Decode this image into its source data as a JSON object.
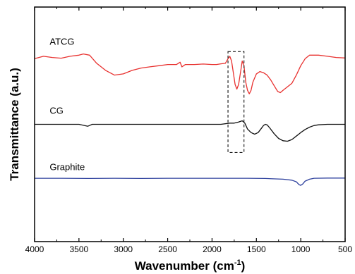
{
  "chart_data": {
    "type": "line",
    "xlabel": "Wavenumber (cm",
    "xlabel_sup": "-1",
    "xlabel_suffix": ")",
    "ylabel": "Transmittance (a.u.)",
    "xlim": [
      4000,
      500
    ],
    "x_reversed": true,
    "x_ticks": [
      4000,
      3500,
      3000,
      2500,
      2000,
      1500,
      1000,
      500
    ],
    "x_tick_labels": [
      "4000",
      "3500",
      "3000",
      "2500",
      "2000",
      "1500",
      "1000",
      "500"
    ],
    "ylim": [
      0,
      1
    ],
    "y_ticks_shown": false,
    "grid": false,
    "legend": "none",
    "highlight_box": {
      "x_from": 1820,
      "x_to": 1640,
      "y_from": 0.38,
      "y_to": 0.81,
      "style": "dashed"
    },
    "series": [
      {
        "name": "ATCG",
        "color": "#e8312f",
        "label_at": [
          3830,
          0.84
        ],
        "points": [
          [
            4000,
            0.78
          ],
          [
            3900,
            0.79
          ],
          [
            3800,
            0.785
          ],
          [
            3700,
            0.782
          ],
          [
            3600,
            0.79
          ],
          [
            3500,
            0.795
          ],
          [
            3450,
            0.8
          ],
          [
            3380,
            0.795
          ],
          [
            3300,
            0.76
          ],
          [
            3200,
            0.73
          ],
          [
            3100,
            0.71
          ],
          [
            3000,
            0.715
          ],
          [
            2900,
            0.73
          ],
          [
            2800,
            0.74
          ],
          [
            2700,
            0.745
          ],
          [
            2600,
            0.75
          ],
          [
            2500,
            0.755
          ],
          [
            2400,
            0.755
          ],
          [
            2360,
            0.765
          ],
          [
            2340,
            0.745
          ],
          [
            2300,
            0.755
          ],
          [
            2200,
            0.755
          ],
          [
            2100,
            0.757
          ],
          [
            2000,
            0.755
          ],
          [
            1950,
            0.755
          ],
          [
            1900,
            0.758
          ],
          [
            1850,
            0.76
          ],
          [
            1820,
            0.78
          ],
          [
            1800,
            0.79
          ],
          [
            1780,
            0.77
          ],
          [
            1760,
            0.72
          ],
          [
            1740,
            0.67
          ],
          [
            1720,
            0.65
          ],
          [
            1700,
            0.67
          ],
          [
            1680,
            0.72
          ],
          [
            1660,
            0.77
          ],
          [
            1640,
            0.75
          ],
          [
            1620,
            0.68
          ],
          [
            1600,
            0.645
          ],
          [
            1580,
            0.63
          ],
          [
            1560,
            0.645
          ],
          [
            1540,
            0.68
          ],
          [
            1500,
            0.715
          ],
          [
            1460,
            0.725
          ],
          [
            1420,
            0.72
          ],
          [
            1380,
            0.71
          ],
          [
            1340,
            0.69
          ],
          [
            1300,
            0.665
          ],
          [
            1260,
            0.64
          ],
          [
            1230,
            0.635
          ],
          [
            1200,
            0.645
          ],
          [
            1150,
            0.66
          ],
          [
            1100,
            0.675
          ],
          [
            1050,
            0.71
          ],
          [
            1000,
            0.75
          ],
          [
            950,
            0.78
          ],
          [
            900,
            0.795
          ],
          [
            800,
            0.795
          ],
          [
            700,
            0.79
          ],
          [
            600,
            0.785
          ],
          [
            500,
            0.783
          ]
        ]
      },
      {
        "name": "CG",
        "color": "#111111",
        "label_at": [
          3830,
          0.545
        ],
        "points": [
          [
            4000,
            0.5
          ],
          [
            3800,
            0.5
          ],
          [
            3600,
            0.5
          ],
          [
            3500,
            0.5
          ],
          [
            3400,
            0.492
          ],
          [
            3350,
            0.5
          ],
          [
            3200,
            0.5
          ],
          [
            3000,
            0.5
          ],
          [
            2800,
            0.5
          ],
          [
            2600,
            0.5
          ],
          [
            2400,
            0.5
          ],
          [
            2200,
            0.5
          ],
          [
            2000,
            0.5
          ],
          [
            1900,
            0.5
          ],
          [
            1800,
            0.505
          ],
          [
            1750,
            0.505
          ],
          [
            1700,
            0.51
          ],
          [
            1660,
            0.515
          ],
          [
            1630,
            0.505
          ],
          [
            1600,
            0.48
          ],
          [
            1560,
            0.465
          ],
          [
            1520,
            0.458
          ],
          [
            1480,
            0.465
          ],
          [
            1450,
            0.48
          ],
          [
            1420,
            0.495
          ],
          [
            1400,
            0.5
          ],
          [
            1380,
            0.498
          ],
          [
            1350,
            0.485
          ],
          [
            1300,
            0.46
          ],
          [
            1250,
            0.44
          ],
          [
            1200,
            0.43
          ],
          [
            1150,
            0.428
          ],
          [
            1100,
            0.435
          ],
          [
            1050,
            0.45
          ],
          [
            1000,
            0.465
          ],
          [
            950,
            0.478
          ],
          [
            900,
            0.488
          ],
          [
            850,
            0.495
          ],
          [
            800,
            0.498
          ],
          [
            700,
            0.5
          ],
          [
            600,
            0.5
          ],
          [
            500,
            0.5
          ]
        ]
      },
      {
        "name": "Graphite",
        "color": "#2b3e9c",
        "label_at": [
          3830,
          0.305
        ],
        "points": [
          [
            4000,
            0.27
          ],
          [
            3700,
            0.27
          ],
          [
            3400,
            0.269
          ],
          [
            3100,
            0.27
          ],
          [
            2800,
            0.269
          ],
          [
            2500,
            0.27
          ],
          [
            2200,
            0.27
          ],
          [
            1900,
            0.27
          ],
          [
            1600,
            0.27
          ],
          [
            1400,
            0.269
          ],
          [
            1200,
            0.266
          ],
          [
            1100,
            0.262
          ],
          [
            1050,
            0.255
          ],
          [
            1020,
            0.243
          ],
          [
            1000,
            0.24
          ],
          [
            980,
            0.245
          ],
          [
            950,
            0.258
          ],
          [
            900,
            0.266
          ],
          [
            850,
            0.27
          ],
          [
            700,
            0.271
          ],
          [
            500,
            0.271
          ]
        ]
      }
    ]
  }
}
